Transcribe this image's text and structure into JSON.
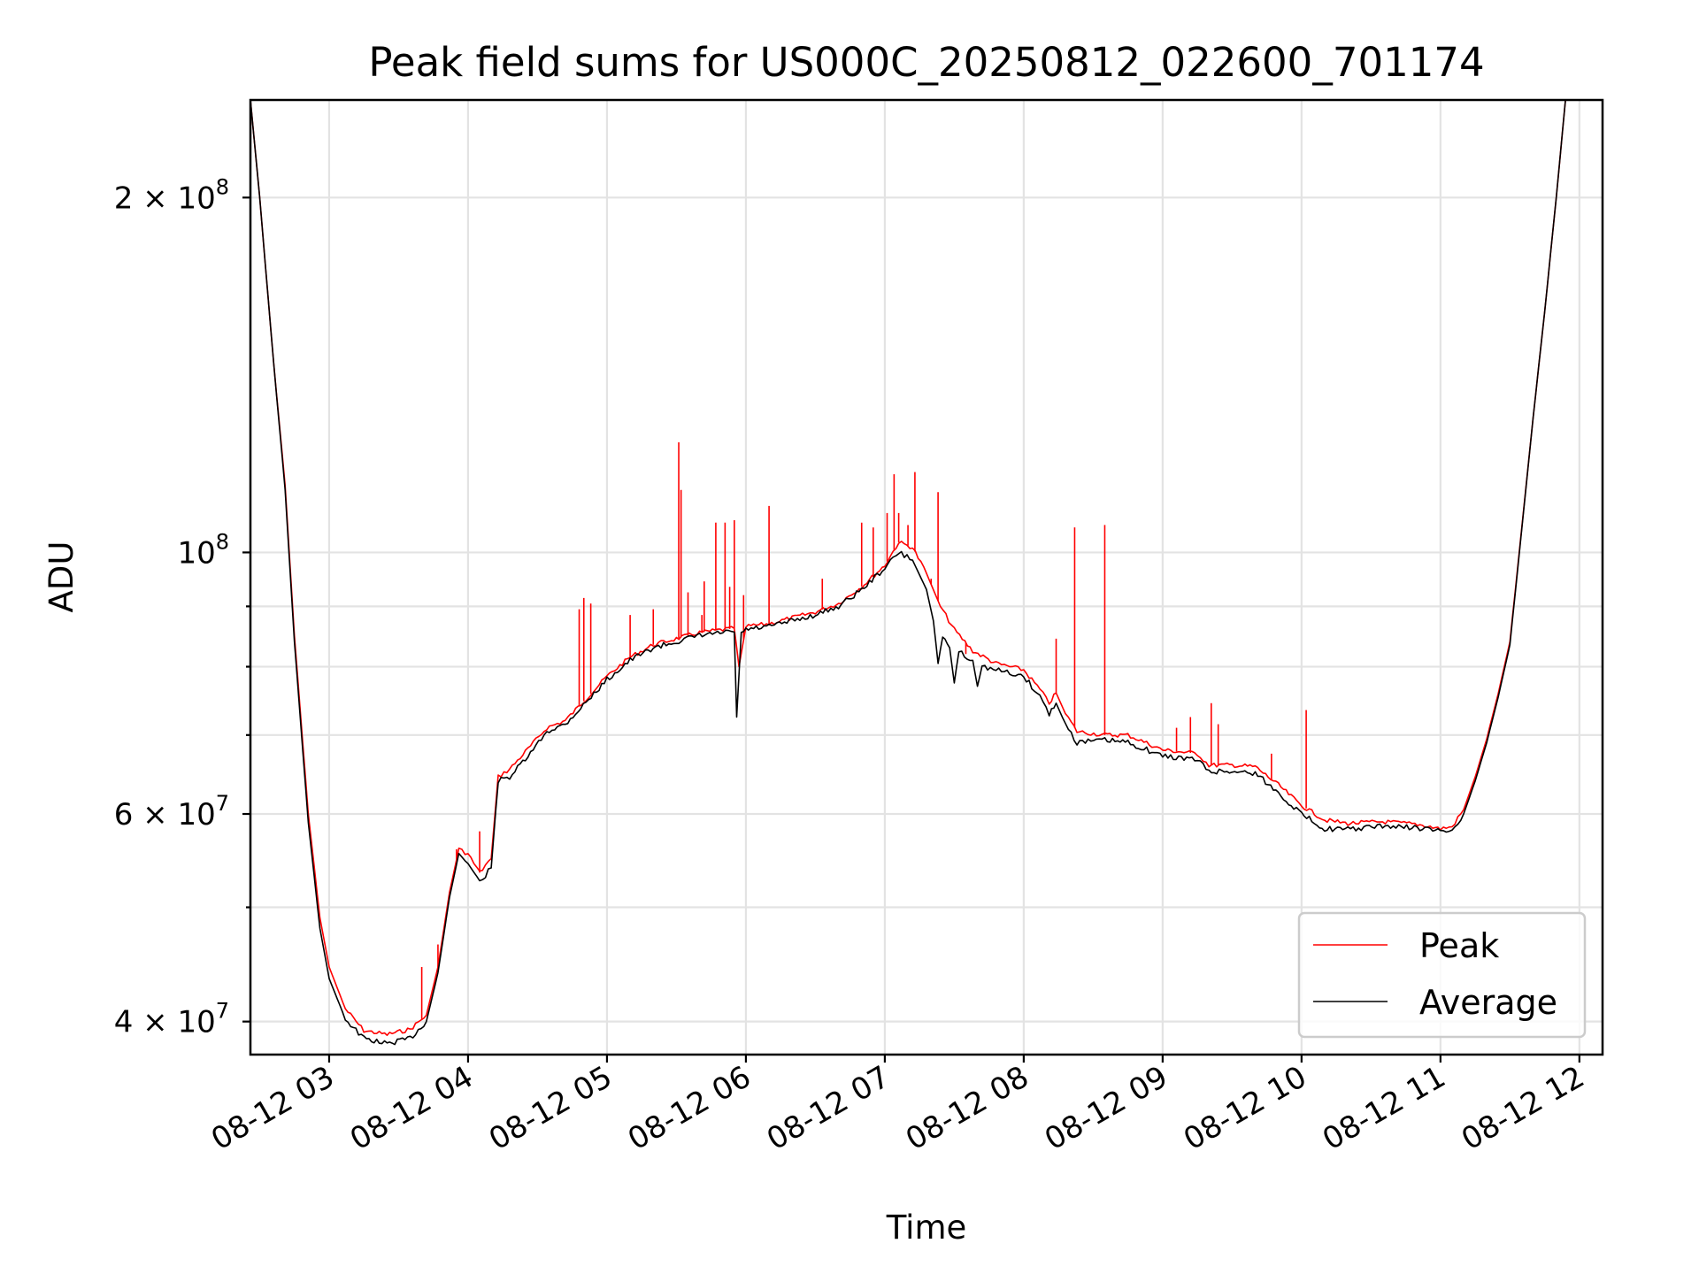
{
  "chart_data": {
    "type": "line",
    "title": "Peak field sums for US000C_20250812_022600_701174",
    "xlabel": "Time",
    "ylabel": "ADU",
    "yscale": "log",
    "grid": true,
    "legend_position": "lower-right",
    "xlim": [
      "2025-08-12 02:26",
      "2025-08-12 12:10"
    ],
    "ylim": [
      37500000,
      242000000
    ],
    "x_ticks": [
      "08-12 03",
      "08-12 04",
      "08-12 05",
      "08-12 06",
      "08-12 07",
      "08-12 08",
      "08-12 09",
      "08-12 10",
      "08-12 11",
      "08-12 12"
    ],
    "y_ticks_major": [
      {
        "value": 40000000,
        "base": "4 × 10",
        "exp": "7"
      },
      {
        "value": 60000000,
        "base": "6 × 10",
        "exp": "7"
      },
      {
        "value": 100000000,
        "base": "10",
        "exp": "8"
      },
      {
        "value": 200000000,
        "base": "2 × 10",
        "exp": "8"
      }
    ],
    "y_ticks_minor": [
      50000000,
      70000000,
      80000000,
      90000000
    ],
    "series": [
      {
        "name": "Peak",
        "color": "#ff0000",
        "points": [
          [
            "2025-08-12 02:26",
            242000000
          ],
          [
            "2025-08-12 02:30",
            200000000
          ],
          [
            "2025-08-12 02:36",
            145000000
          ],
          [
            "2025-08-12 02:41",
            114000000
          ],
          [
            "2025-08-12 02:45",
            85000000
          ],
          [
            "2025-08-12 02:51",
            60000000
          ],
          [
            "2025-08-12 02:56",
            49000000
          ],
          [
            "2025-08-12 03:00",
            44500000
          ],
          [
            "2025-08-12 03:07",
            41000000
          ],
          [
            "2025-08-12 03:15",
            39300000
          ],
          [
            "2025-08-12 03:25",
            39000000
          ],
          [
            "2025-08-12 03:35",
            39400000
          ],
          [
            "2025-08-12 03:42",
            40500000
          ],
          [
            "2025-08-12 03:47",
            44500000
          ],
          [
            "2025-08-12 03:52",
            51500000
          ],
          [
            "2025-08-12 03:56",
            56000000
          ],
          [
            "2025-08-12 04:00",
            55500000
          ],
          [
            "2025-08-12 04:05",
            53500000
          ],
          [
            "2025-08-12 04:10",
            55000000
          ],
          [
            "2025-08-12 04:13",
            64500000
          ],
          [
            "2025-08-12 04:18",
            65500000
          ],
          [
            "2025-08-12 04:27",
            68500000
          ],
          [
            "2025-08-12 04:34",
            71000000
          ],
          [
            "2025-08-12 04:42",
            72000000
          ],
          [
            "2025-08-12 04:52",
            75500000
          ],
          [
            "2025-08-12 05:00",
            78500000
          ],
          [
            "2025-08-12 05:10",
            81500000
          ],
          [
            "2025-08-12 05:20",
            83500000
          ],
          [
            "2025-08-12 05:30",
            84500000
          ],
          [
            "2025-08-12 05:40",
            85500000
          ],
          [
            "2025-08-12 05:50",
            86000000
          ],
          [
            "2025-08-12 05:55",
            86200000
          ],
          [
            "2025-08-12 05:57",
            80000000
          ],
          [
            "2025-08-12 06:00",
            86500000
          ],
          [
            "2025-08-12 06:10",
            87000000
          ],
          [
            "2025-08-12 06:20",
            88000000
          ],
          [
            "2025-08-12 06:30",
            89000000
          ],
          [
            "2025-08-12 06:40",
            90500000
          ],
          [
            "2025-08-12 06:50",
            93500000
          ],
          [
            "2025-08-12 07:00",
            97500000
          ],
          [
            "2025-08-12 07:06",
            102000000
          ],
          [
            "2025-08-12 07:12",
            101000000
          ],
          [
            "2025-08-12 07:18",
            96000000
          ],
          [
            "2025-08-12 07:24",
            90000000
          ],
          [
            "2025-08-12 07:30",
            86000000
          ],
          [
            "2025-08-12 07:38",
            82500000
          ],
          [
            "2025-08-12 07:48",
            80500000
          ],
          [
            "2025-08-12 08:00",
            79500000
          ],
          [
            "2025-08-12 08:07",
            76500000
          ],
          [
            "2025-08-12 08:11",
            74500000
          ],
          [
            "2025-08-12 08:14",
            76000000
          ],
          [
            "2025-08-12 08:18",
            73000000
          ],
          [
            "2025-08-12 08:23",
            70500000
          ],
          [
            "2025-08-12 08:35",
            70000000
          ],
          [
            "2025-08-12 08:45",
            70000000
          ],
          [
            "2025-08-12 09:00",
            68000000
          ],
          [
            "2025-08-12 09:15",
            67500000
          ],
          [
            "2025-08-12 09:20",
            66000000
          ],
          [
            "2025-08-12 09:30",
            66000000
          ],
          [
            "2025-08-12 09:40",
            65800000
          ],
          [
            "2025-08-12 09:50",
            63500000
          ],
          [
            "2025-08-12 10:00",
            61000000
          ],
          [
            "2025-08-12 10:10",
            59300000
          ],
          [
            "2025-08-12 10:20",
            58900000
          ],
          [
            "2025-08-12 10:35",
            59100000
          ],
          [
            "2025-08-12 10:50",
            58800000
          ],
          [
            "2025-08-12 11:00",
            58300000
          ],
          [
            "2025-08-12 11:05",
            58500000
          ],
          [
            "2025-08-12 11:10",
            60500000
          ],
          [
            "2025-08-12 11:15",
            64500000
          ],
          [
            "2025-08-12 11:20",
            69500000
          ],
          [
            "2025-08-12 11:25",
            76000000
          ],
          [
            "2025-08-12 11:30",
            84000000
          ],
          [
            "2025-08-12 11:40",
            130000000
          ],
          [
            "2025-08-12 11:45",
            160000000
          ],
          [
            "2025-08-12 11:50",
            200000000
          ],
          [
            "2025-08-12 11:54",
            242000000
          ]
        ],
        "spikes": [
          [
            "2025-08-12 03:40",
            44500000
          ],
          [
            "2025-08-12 03:47",
            46500000
          ],
          [
            "2025-08-12 03:55",
            56000000
          ],
          [
            "2025-08-12 04:05",
            58000000
          ],
          [
            "2025-08-12 04:48",
            89500000
          ],
          [
            "2025-08-12 04:50",
            91500000
          ],
          [
            "2025-08-12 04:53",
            90500000
          ],
          [
            "2025-08-12 05:10",
            88500000
          ],
          [
            "2025-08-12 05:20",
            89500000
          ],
          [
            "2025-08-12 05:31",
            124000000
          ],
          [
            "2025-08-12 05:32",
            113000000
          ],
          [
            "2025-08-12 05:35",
            92500000
          ],
          [
            "2025-08-12 05:41",
            88500000
          ],
          [
            "2025-08-12 05:42",
            94500000
          ],
          [
            "2025-08-12 05:47",
            106000000
          ],
          [
            "2025-08-12 05:51",
            106000000
          ],
          [
            "2025-08-12 05:53",
            93500000
          ],
          [
            "2025-08-12 05:55",
            106500000
          ],
          [
            "2025-08-12 05:59",
            92000000
          ],
          [
            "2025-08-12 06:10",
            109500000
          ],
          [
            "2025-08-12 06:33",
            95000000
          ],
          [
            "2025-08-12 06:50",
            106000000
          ],
          [
            "2025-08-12 06:55",
            105000000
          ],
          [
            "2025-08-12 07:01",
            108000000
          ],
          [
            "2025-08-12 07:04",
            116500000
          ],
          [
            "2025-08-12 07:06",
            108000000
          ],
          [
            "2025-08-12 07:10",
            105500000
          ],
          [
            "2025-08-12 07:13",
            117000000
          ],
          [
            "2025-08-12 07:20",
            95000000
          ],
          [
            "2025-08-12 07:23",
            112500000
          ],
          [
            "2025-08-12 07:35",
            82000000
          ],
          [
            "2025-08-12 08:14",
            84500000
          ],
          [
            "2025-08-12 08:22",
            105000000
          ],
          [
            "2025-08-12 08:35",
            105500000
          ],
          [
            "2025-08-12 09:06",
            71000000
          ],
          [
            "2025-08-12 09:12",
            72500000
          ],
          [
            "2025-08-12 09:21",
            74500000
          ],
          [
            "2025-08-12 09:24",
            71500000
          ],
          [
            "2025-08-12 09:47",
            67500000
          ],
          [
            "2025-08-12 10:02",
            73500000
          ]
        ]
      },
      {
        "name": "Average",
        "color": "#000000",
        "points": [
          [
            "2025-08-12 02:26",
            242000000
          ],
          [
            "2025-08-12 02:30",
            200000000
          ],
          [
            "2025-08-12 02:36",
            145000000
          ],
          [
            "2025-08-12 02:41",
            113000000
          ],
          [
            "2025-08-12 02:45",
            84000000
          ],
          [
            "2025-08-12 02:51",
            59000000
          ],
          [
            "2025-08-12 02:56",
            48000000
          ],
          [
            "2025-08-12 03:00",
            43500000
          ],
          [
            "2025-08-12 03:07",
            40200000
          ],
          [
            "2025-08-12 03:15",
            38700000
          ],
          [
            "2025-08-12 03:25",
            38300000
          ],
          [
            "2025-08-12 03:35",
            38700000
          ],
          [
            "2025-08-12 03:42",
            40000000
          ],
          [
            "2025-08-12 03:47",
            44000000
          ],
          [
            "2025-08-12 03:52",
            51000000
          ],
          [
            "2025-08-12 03:56",
            55500000
          ],
          [
            "2025-08-12 04:00",
            54500000
          ],
          [
            "2025-08-12 04:05",
            52500000
          ],
          [
            "2025-08-12 04:10",
            54000000
          ],
          [
            "2025-08-12 04:13",
            64000000
          ],
          [
            "2025-08-12 04:18",
            64500000
          ],
          [
            "2025-08-12 04:27",
            67500000
          ],
          [
            "2025-08-12 04:34",
            70500000
          ],
          [
            "2025-08-12 04:42",
            71500000
          ],
          [
            "2025-08-12 04:52",
            75000000
          ],
          [
            "2025-08-12 05:00",
            78000000
          ],
          [
            "2025-08-12 05:10",
            81000000
          ],
          [
            "2025-08-12 05:20",
            83000000
          ],
          [
            "2025-08-12 05:30",
            84000000
          ],
          [
            "2025-08-12 05:40",
            85000000
          ],
          [
            "2025-08-12 05:50",
            85500000
          ],
          [
            "2025-08-12 05:55",
            85600000
          ],
          [
            "2025-08-12 05:56",
            72500000
          ],
          [
            "2025-08-12 05:58",
            85500000
          ],
          [
            "2025-08-12 06:00",
            86000000
          ],
          [
            "2025-08-12 06:10",
            86500000
          ],
          [
            "2025-08-12 06:20",
            87500000
          ],
          [
            "2025-08-12 06:30",
            88500000
          ],
          [
            "2025-08-12 06:40",
            90000000
          ],
          [
            "2025-08-12 06:50",
            93000000
          ],
          [
            "2025-08-12 07:00",
            97000000
          ],
          [
            "2025-08-12 07:06",
            100000000
          ],
          [
            "2025-08-12 07:12",
            98500000
          ],
          [
            "2025-08-12 07:18",
            93000000
          ],
          [
            "2025-08-12 07:21",
            87500000
          ],
          [
            "2025-08-12 07:23",
            80500000
          ],
          [
            "2025-08-12 07:25",
            85000000
          ],
          [
            "2025-08-12 07:28",
            83000000
          ],
          [
            "2025-08-12 07:30",
            77500000
          ],
          [
            "2025-08-12 07:32",
            82500000
          ],
          [
            "2025-08-12 07:38",
            81000000
          ],
          [
            "2025-08-12 07:40",
            77000000
          ],
          [
            "2025-08-12 07:42",
            80000000
          ],
          [
            "2025-08-12 07:48",
            79500000
          ],
          [
            "2025-08-12 08:00",
            78500000
          ],
          [
            "2025-08-12 08:07",
            75500000
          ],
          [
            "2025-08-12 08:11",
            73000000
          ],
          [
            "2025-08-12 08:14",
            74500000
          ],
          [
            "2025-08-12 08:18",
            71500000
          ],
          [
            "2025-08-12 08:23",
            69000000
          ],
          [
            "2025-08-12 08:35",
            69300000
          ],
          [
            "2025-08-12 08:45",
            69000000
          ],
          [
            "2025-08-12 09:00",
            67200000
          ],
          [
            "2025-08-12 09:15",
            66700000
          ],
          [
            "2025-08-12 09:20",
            65200000
          ],
          [
            "2025-08-12 09:30",
            65200000
          ],
          [
            "2025-08-12 09:40",
            65000000
          ],
          [
            "2025-08-12 09:50",
            62500000
          ],
          [
            "2025-08-12 10:00",
            60000000
          ],
          [
            "2025-08-12 10:10",
            58300000
          ],
          [
            "2025-08-12 10:20",
            58200000
          ],
          [
            "2025-08-12 10:35",
            58600000
          ],
          [
            "2025-08-12 10:50",
            58400000
          ],
          [
            "2025-08-12 11:00",
            58000000
          ],
          [
            "2025-08-12 11:05",
            58100000
          ],
          [
            "2025-08-12 11:10",
            60000000
          ],
          [
            "2025-08-12 11:15",
            64000000
          ],
          [
            "2025-08-12 11:20",
            69000000
          ],
          [
            "2025-08-12 11:25",
            75500000
          ],
          [
            "2025-08-12 11:30",
            83500000
          ],
          [
            "2025-08-12 11:40",
            130000000
          ],
          [
            "2025-08-12 11:45",
            160000000
          ],
          [
            "2025-08-12 11:50",
            200000000
          ],
          [
            "2025-08-12 11:54",
            242000000
          ]
        ]
      }
    ]
  }
}
